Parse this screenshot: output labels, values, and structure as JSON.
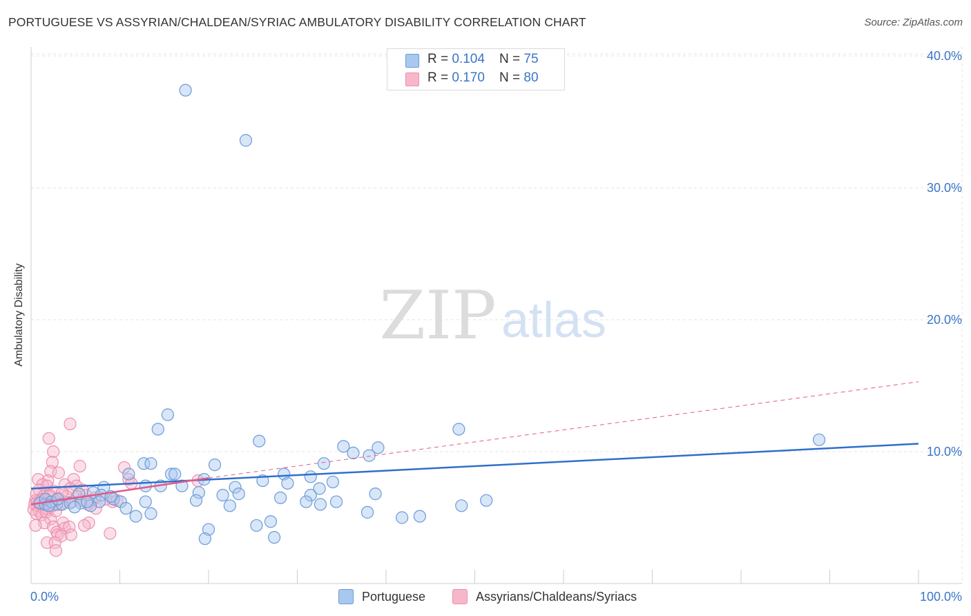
{
  "title": "PORTUGUESE VS ASSYRIAN/CHALDEAN/SYRIAC AMBULATORY DISABILITY CORRELATION CHART",
  "source": "Source: ZipAtlas.com",
  "watermark": {
    "zip": "ZIP",
    "atlas": "atlas"
  },
  "colors": {
    "blue_fill": "#a9c8f0",
    "blue_stroke": "#6a9bd8",
    "blue_line": "#2f6fcc",
    "pink_fill": "#f6b7cb",
    "pink_stroke": "#ec8fae",
    "pink_line": "#e05a8a",
    "tick_label": "#3a74c8",
    "grid": "#e3e3e3"
  },
  "legend_stats": [
    {
      "r_label": "R = ",
      "r_value": "0.104",
      "n_label": "N = ",
      "n_value": "75"
    },
    {
      "r_label": "R = ",
      "r_value": "0.170",
      "n_label": "N = ",
      "n_value": "80"
    }
  ],
  "chart_data": {
    "type": "scatter",
    "xlabel": "",
    "ylabel": "Ambulatory Disability",
    "xlim": [
      0,
      100
    ],
    "ylim": [
      0,
      41
    ],
    "x_tick_labels": [
      "0.0%",
      "100.0%"
    ],
    "y_ticks": [
      10,
      20,
      30,
      40
    ],
    "y_tick_labels": [
      "10.0%",
      "20.0%",
      "30.0%",
      "40.0%"
    ],
    "grid": true,
    "legend_placement": "top-center",
    "series": [
      {
        "name": "Portuguese",
        "color": "#a9c8f0",
        "trend": {
          "x": [
            0,
            100
          ],
          "y": [
            7.2,
            10.6
          ],
          "style": "solid"
        },
        "points": [
          [
            17.4,
            37.4
          ],
          [
            24.2,
            33.6
          ],
          [
            15.4,
            12.8
          ],
          [
            14.3,
            11.7
          ],
          [
            25.7,
            10.8
          ],
          [
            35.2,
            10.4
          ],
          [
            39.1,
            10.3
          ],
          [
            36.3,
            9.9
          ],
          [
            38.1,
            9.7
          ],
          [
            48.2,
            11.7
          ],
          [
            88.8,
            10.9
          ],
          [
            12.7,
            9.1
          ],
          [
            13.5,
            9.1
          ],
          [
            20.7,
            9.0
          ],
          [
            33.0,
            9.1
          ],
          [
            11.0,
            8.3
          ],
          [
            15.8,
            8.3
          ],
          [
            16.2,
            8.3
          ],
          [
            28.5,
            8.3
          ],
          [
            31.5,
            8.1
          ],
          [
            19.5,
            7.9
          ],
          [
            26.1,
            7.8
          ],
          [
            34.0,
            7.7
          ],
          [
            28.9,
            7.6
          ],
          [
            8.2,
            7.3
          ],
          [
            12.9,
            7.4
          ],
          [
            14.6,
            7.4
          ],
          [
            17.0,
            7.4
          ],
          [
            23.0,
            7.3
          ],
          [
            32.5,
            7.2
          ],
          [
            7.0,
            6.9
          ],
          [
            7.9,
            6.7
          ],
          [
            18.9,
            6.9
          ],
          [
            21.6,
            6.7
          ],
          [
            23.4,
            6.8
          ],
          [
            28.1,
            6.5
          ],
          [
            31.5,
            6.7
          ],
          [
            38.8,
            6.8
          ],
          [
            9.3,
            6.4
          ],
          [
            10.1,
            6.2
          ],
          [
            12.9,
            6.2
          ],
          [
            18.6,
            6.3
          ],
          [
            31.0,
            6.2
          ],
          [
            32.6,
            6.0
          ],
          [
            34.4,
            6.2
          ],
          [
            51.3,
            6.3
          ],
          [
            1.0,
            6.1
          ],
          [
            1.6,
            6.0
          ],
          [
            2.9,
            6.0
          ],
          [
            3.5,
            6.0
          ],
          [
            5.6,
            6.1
          ],
          [
            7.7,
            6.2
          ],
          [
            10.7,
            5.7
          ],
          [
            22.4,
            5.9
          ],
          [
            48.5,
            5.9
          ],
          [
            1.6,
            6.4
          ],
          [
            2.3,
            6.2
          ],
          [
            4.4,
            6.1
          ],
          [
            6.7,
            5.9
          ],
          [
            5.4,
            6.8
          ],
          [
            13.5,
            5.3
          ],
          [
            11.8,
            5.1
          ],
          [
            37.9,
            5.4
          ],
          [
            41.8,
            5.0
          ],
          [
            43.8,
            5.1
          ],
          [
            25.4,
            4.4
          ],
          [
            27.0,
            4.7
          ],
          [
            20.0,
            4.1
          ],
          [
            19.6,
            3.4
          ],
          [
            27.4,
            3.5
          ],
          [
            2.0,
            5.9
          ],
          [
            3.0,
            6.4
          ],
          [
            6.3,
            6.2
          ],
          [
            9.0,
            6.6
          ],
          [
            4.9,
            5.8
          ]
        ]
      },
      {
        "name": "Assyrians/Chaldeans/Syriacs",
        "color": "#f6b7cb",
        "trend": {
          "x": [
            0,
            20
          ],
          "y": [
            6.0,
            8.0
          ],
          "dashed_to": {
            "x": 100,
            "y": 15.3
          }
        },
        "points": [
          [
            4.4,
            12.1
          ],
          [
            2.0,
            11.0
          ],
          [
            2.5,
            10.0
          ],
          [
            2.4,
            9.2
          ],
          [
            5.5,
            8.9
          ],
          [
            10.5,
            8.8
          ],
          [
            2.2,
            8.5
          ],
          [
            3.1,
            8.4
          ],
          [
            0.8,
            7.9
          ],
          [
            1.9,
            7.8
          ],
          [
            4.8,
            7.9
          ],
          [
            11.0,
            7.9
          ],
          [
            18.8,
            7.8
          ],
          [
            1.3,
            7.5
          ],
          [
            1.8,
            7.4
          ],
          [
            3.8,
            7.5
          ],
          [
            5.1,
            7.4
          ],
          [
            11.3,
            7.6
          ],
          [
            0.9,
            7.1
          ],
          [
            2.6,
            7.0
          ],
          [
            4.4,
            7.2
          ],
          [
            5.8,
            7.1
          ],
          [
            0.6,
            6.8
          ],
          [
            1.4,
            6.6
          ],
          [
            2.1,
            6.7
          ],
          [
            3.1,
            6.5
          ],
          [
            4.0,
            6.6
          ],
          [
            5.2,
            6.6
          ],
          [
            6.2,
            6.7
          ],
          [
            0.5,
            6.3
          ],
          [
            1.0,
            6.2
          ],
          [
            1.6,
            6.3
          ],
          [
            2.3,
            6.1
          ],
          [
            3.7,
            6.2
          ],
          [
            4.6,
            6.2
          ],
          [
            5.6,
            6.3
          ],
          [
            7.2,
            6.5
          ],
          [
            9.2,
            6.2
          ],
          [
            0.4,
            6.0
          ],
          [
            0.7,
            5.9
          ],
          [
            1.1,
            5.8
          ],
          [
            1.5,
            5.9
          ],
          [
            0.3,
            5.6
          ],
          [
            0.9,
            5.5
          ],
          [
            1.4,
            5.7
          ],
          [
            1.9,
            5.6
          ],
          [
            7.3,
            5.7
          ],
          [
            0.6,
            5.3
          ],
          [
            1.2,
            5.2
          ],
          [
            1.7,
            5.4
          ],
          [
            2.2,
            4.9
          ],
          [
            1.5,
            4.6
          ],
          [
            3.6,
            4.6
          ],
          [
            6.5,
            4.6
          ],
          [
            0.5,
            4.4
          ],
          [
            2.5,
            4.3
          ],
          [
            3.8,
            4.2
          ],
          [
            4.3,
            4.3
          ],
          [
            6.0,
            4.4
          ],
          [
            2.9,
            3.9
          ],
          [
            3.0,
            3.7
          ],
          [
            3.4,
            3.6
          ],
          [
            4.5,
            3.7
          ],
          [
            8.9,
            3.8
          ],
          [
            1.8,
            3.1
          ],
          [
            2.7,
            3.1
          ],
          [
            2.8,
            2.5
          ],
          [
            0.9,
            6.1
          ],
          [
            1.3,
            6.4
          ],
          [
            2.0,
            6.6
          ],
          [
            2.8,
            5.5
          ],
          [
            3.5,
            6.9
          ],
          [
            6.8,
            6.3
          ],
          [
            8.4,
            6.4
          ],
          [
            9.7,
            6.3
          ],
          [
            0.7,
            6.2
          ],
          [
            1.6,
            6.1
          ],
          [
            3.3,
            6.0
          ],
          [
            6.4,
            6.0
          ],
          [
            2.4,
            5.9
          ]
        ]
      }
    ]
  }
}
